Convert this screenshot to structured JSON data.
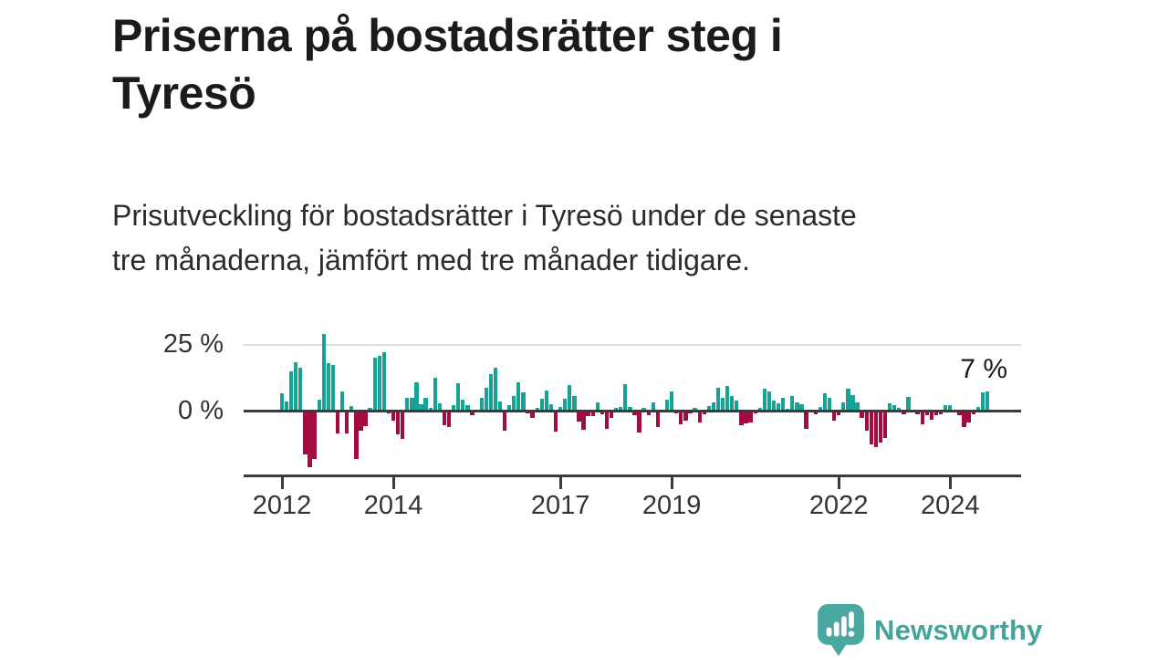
{
  "header": {
    "title_lines": [
      "Priserna på bostadsrätter steg i",
      "Tyresö"
    ],
    "subtitle_lines": [
      "Prisutveckling för bostadsrätter i Tyresö under de senaste",
      "tre månaderna, jämfört med tre månader tidigare."
    ]
  },
  "chart_data": {
    "type": "bar",
    "title": "Priserna på bostadsrätter steg i Tyresö",
    "subtitle": "Prisutveckling för bostadsrätter i Tyresö under de senaste tre månaderna, jämfört med tre månader tidigare.",
    "unit": "%",
    "frequency": "monthly",
    "start_year": 2012,
    "start_month": "2012-01",
    "end_month": "2024-09",
    "ylim": [
      -25,
      30
    ],
    "grid": "25% line only",
    "y_ticks": [
      {
        "label": "25 %",
        "value": 25
      },
      {
        "label": "0 %",
        "value": 0
      }
    ],
    "x_axis": {
      "tick_years": [
        2012,
        2014,
        2017,
        2019,
        2022,
        2024
      ]
    },
    "annotation": {
      "label": "7 %",
      "value": 7,
      "position": "last-bar"
    },
    "colors": {
      "positive": "#17A296",
      "negative": "#A20C40",
      "axis": "#3b3b3b",
      "gridline": "#dcdcdc"
    },
    "values": [
      6.3,
      3.4,
      14.6,
      18.0,
      16.1,
      -15.5,
      -20.5,
      -17.2,
      4.2,
      28.7,
      17.8,
      17.0,
      -7.7,
      7.3,
      -7.7,
      1.7,
      -17.2,
      -6.7,
      -5.2,
      0.9,
      19.8,
      20.5,
      21.6,
      -0.5,
      -2.9,
      -8.3,
      -10.0,
      4.9,
      4.9,
      10.4,
      2.5,
      4.7,
      1.0,
      12.4,
      2.6,
      -4.6,
      -5.4,
      2.1,
      10.3,
      4.1,
      2.1,
      -1.0,
      0.5,
      4.6,
      8.6,
      13.5,
      16.0,
      3.4,
      -6.9,
      2.0,
      5.3,
      10.7,
      6.7,
      -0.5,
      -2.0,
      1.0,
      4.4,
      7.4,
      2.3,
      -7.1,
      1.5,
      4.4,
      9.5,
      5.5,
      -3.5,
      -6.5,
      -1.4,
      -1.2,
      2.9,
      -0.6,
      -6.0,
      -2.2,
      1.0,
      1.5,
      9.7,
      1.5,
      -1.0,
      -7.5,
      1.0,
      -1.0,
      3.2,
      -5.4,
      0.5,
      4.0,
      7.1,
      -0.5,
      -4.5,
      -3.0,
      -0.5,
      1.0,
      -3.7,
      -0.6,
      1.7,
      3.2,
      8.5,
      4.8,
      9.2,
      5.5,
      3.8,
      -4.8,
      -4.2,
      -3.7,
      -0.5,
      1.0,
      8.3,
      7.2,
      3.8,
      2.6,
      4.6,
      0.7,
      5.5,
      3.2,
      2.3,
      -6.0,
      0.5,
      -0.7,
      1.2,
      6.5,
      4.6,
      -3.2,
      -1.0,
      3.1,
      8.0,
      5.7,
      3.1,
      -2.1,
      -6.7,
      -11.8,
      -13.0,
      -11.2,
      -9.5,
      2.8,
      2.2,
      1.1,
      -0.8,
      5.1,
      0.5,
      -0.7,
      -4.4,
      -1.0,
      -2.6,
      -0.9,
      -0.6,
      2.0,
      1.9,
      0.5,
      -0.9,
      -5.4,
      -3.7,
      -0.8,
      1.3,
      6.8,
      7.0
    ]
  },
  "footer": {
    "brand": "Newsworthy"
  }
}
